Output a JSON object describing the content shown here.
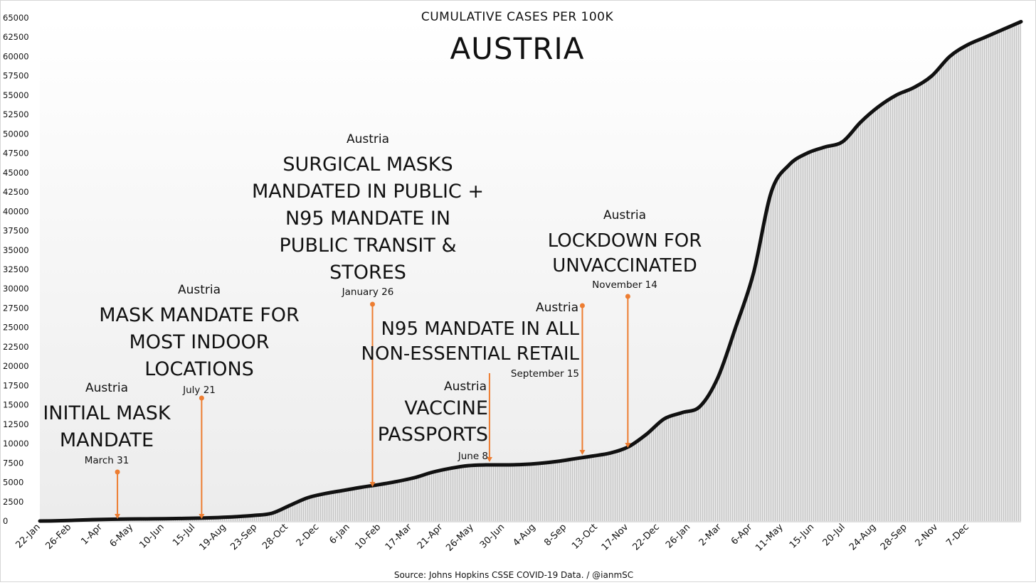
{
  "chart_data": {
    "type": "area",
    "title": "CUMULATIVE CASES PER 100K",
    "subtitle": "AUSTRIA",
    "source": "Source: Johns Hopkins CSSE COVID-19 Data. / @ianmSC",
    "ylim": [
      0,
      65000
    ],
    "y_ticks": [
      0,
      2500,
      5000,
      7500,
      10000,
      12500,
      15000,
      17500,
      20000,
      22500,
      25000,
      27500,
      30000,
      32500,
      35000,
      37500,
      40000,
      42500,
      45000,
      47500,
      50000,
      52500,
      55000,
      57500,
      60000,
      62500,
      65000
    ],
    "x_ticks": [
      "22-Jan",
      "26-Feb",
      "1-Apr",
      "6-May",
      "10-Jun",
      "15-Jul",
      "19-Aug",
      "23-Sep",
      "28-Oct",
      "2-Dec",
      "6-Jan",
      "10-Feb",
      "17-Mar",
      "21-Apr",
      "26-May",
      "30-Jun",
      "4-Aug",
      "8-Sep",
      "13-Oct",
      "17-Nov",
      "22-Dec",
      "26-Jan",
      "2-Mar",
      "6-Apr",
      "11-May",
      "15-Jun",
      "20-Jul",
      "24-Aug",
      "28-Sep",
      "2-Nov",
      "7-Dec"
    ],
    "grid": false,
    "colors": {
      "line": "#111111",
      "fill": "#dcdcdc",
      "annotation": "#ed7d31"
    },
    "series": [
      {
        "values": [
          0,
          30,
          100,
          180,
          230,
          260,
          280,
          300,
          330,
          380,
          450,
          560,
          720,
          1000,
          2000,
          3000,
          3550,
          3950,
          4350,
          4700,
          5100,
          5600,
          6300,
          6800,
          7150,
          7250,
          7250,
          7300,
          7450,
          7700,
          8050,
          8400,
          8800,
          9600,
          11200,
          13200,
          14000,
          14800,
          18500,
          25000,
          32000,
          42500,
          46000,
          47500,
          48300,
          49000,
          51500,
          53500,
          55000,
          56000,
          57500,
          60000,
          61500,
          62500,
          63500,
          64500
        ]
      }
    ],
    "annotations": [
      {
        "country": "Austria",
        "text_lines": [
          "INITIAL MASK",
          "MANDATE"
        ],
        "date": "March 31"
      },
      {
        "country": "Austria",
        "text_lines": [
          "MASK MANDATE FOR",
          "MOST INDOOR",
          "LOCATIONS"
        ],
        "date": "July 21"
      },
      {
        "country": "Austria",
        "text_lines": [
          "SURGICAL MASKS",
          "MANDATED IN PUBLIC +",
          "N95 MANDATE IN",
          "PUBLIC TRANSIT &",
          "STORES"
        ],
        "date": "January 26"
      },
      {
        "country": "Austria",
        "text_lines": [
          "VACCINE",
          "PASSPORTS"
        ],
        "date": "June 8"
      },
      {
        "country": "Austria",
        "text_lines": [
          "N95 MANDATE IN ALL",
          "NON-ESSENTIAL RETAIL"
        ],
        "date": "September 15"
      },
      {
        "country": "Austria",
        "text_lines": [
          "LOCKDOWN FOR",
          "UNVACCINATED"
        ],
        "date": "November 14"
      }
    ]
  }
}
